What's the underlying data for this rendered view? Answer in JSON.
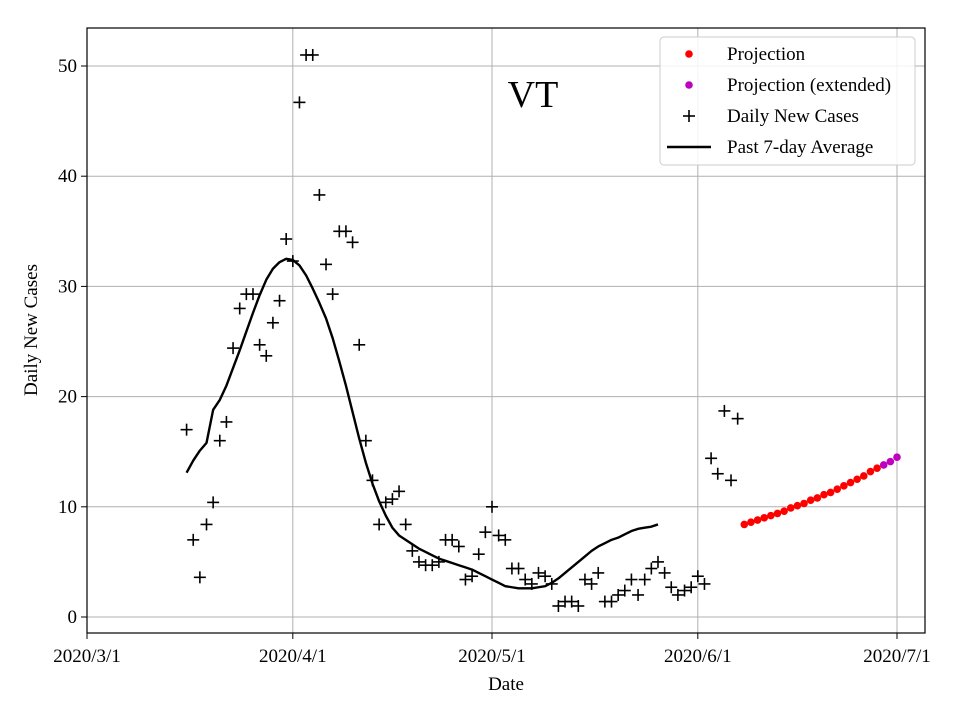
{
  "chart_data": {
    "type": "scatter",
    "title": "VT",
    "xlabel": "Date",
    "ylabel": "Daily New Cases",
    "x_range_days": [
      0,
      122
    ],
    "ylim": [
      -1.5,
      53.5
    ],
    "grid": true,
    "legend_location": "top-right",
    "x_ticks": [
      {
        "day": 0,
        "label": "2020/3/1"
      },
      {
        "day": 31,
        "label": "2020/4/1"
      },
      {
        "day": 61,
        "label": "2020/5/1"
      },
      {
        "day": 92,
        "label": "2020/6/1"
      },
      {
        "day": 122,
        "label": "2020/7/1"
      }
    ],
    "y_ticks": [
      0,
      10,
      20,
      30,
      40,
      50
    ],
    "series": [
      {
        "name": "Daily New Cases",
        "kind": "marker-plus",
        "color": "#000000",
        "points": [
          [
            15,
            17.0
          ],
          [
            16,
            7.0
          ],
          [
            17,
            3.6
          ],
          [
            18,
            8.4
          ],
          [
            19,
            10.4
          ],
          [
            20,
            16.0
          ],
          [
            21,
            17.7
          ],
          [
            22,
            24.4
          ],
          [
            23,
            28.0
          ],
          [
            24,
            29.3
          ],
          [
            25,
            29.3
          ],
          [
            26,
            24.7
          ],
          [
            27,
            23.7
          ],
          [
            28,
            26.7
          ],
          [
            29,
            28.7
          ],
          [
            30,
            34.3
          ],
          [
            31,
            32.3
          ],
          [
            32,
            46.7
          ],
          [
            33,
            51.0
          ],
          [
            34,
            51.0
          ],
          [
            35,
            38.3
          ],
          [
            36,
            32.0
          ],
          [
            37,
            29.3
          ],
          [
            38,
            35.0
          ],
          [
            39,
            35.0
          ],
          [
            40,
            34.0
          ],
          [
            41,
            24.7
          ],
          [
            42,
            16.0
          ],
          [
            43,
            12.4
          ],
          [
            44,
            8.4
          ],
          [
            45,
            10.4
          ],
          [
            46,
            10.7
          ],
          [
            47,
            11.4
          ],
          [
            48,
            8.4
          ],
          [
            49,
            6.0
          ],
          [
            50,
            5.0
          ],
          [
            51,
            4.7
          ],
          [
            52,
            4.7
          ],
          [
            53,
            5.0
          ],
          [
            54,
            7.0
          ],
          [
            55,
            7.0
          ],
          [
            56,
            6.4
          ],
          [
            57,
            3.4
          ],
          [
            58,
            3.7
          ],
          [
            59,
            5.7
          ],
          [
            60,
            7.7
          ],
          [
            61,
            10.0
          ],
          [
            62,
            7.4
          ],
          [
            63,
            7.0
          ],
          [
            64,
            4.4
          ],
          [
            65,
            4.4
          ],
          [
            66,
            3.4
          ],
          [
            67,
            3.0
          ],
          [
            68,
            4.0
          ],
          [
            69,
            3.7
          ],
          [
            70,
            3.0
          ],
          [
            71,
            1.0
          ],
          [
            72,
            1.4
          ],
          [
            73,
            1.4
          ],
          [
            74,
            1.0
          ],
          [
            75,
            3.4
          ],
          [
            76,
            3.0
          ],
          [
            77,
            4.0
          ],
          [
            78,
            1.4
          ],
          [
            79,
            1.4
          ],
          [
            80,
            2.0
          ],
          [
            81,
            2.4
          ],
          [
            82,
            3.4
          ],
          [
            83,
            2.0
          ],
          [
            84,
            3.4
          ],
          [
            85,
            4.4
          ],
          [
            86,
            5.0
          ],
          [
            87,
            4.0
          ],
          [
            88,
            2.7
          ],
          [
            89,
            2.0
          ],
          [
            90,
            2.4
          ],
          [
            91,
            2.7
          ],
          [
            92,
            3.7
          ],
          [
            93,
            3.0
          ],
          [
            94,
            14.4
          ],
          [
            95,
            13.0
          ],
          [
            96,
            18.7
          ],
          [
            97,
            12.4
          ],
          [
            98,
            18.0
          ]
        ]
      },
      {
        "name": "Past 7-day Average",
        "kind": "line",
        "color": "#000000",
        "points": [
          [
            15,
            13.1
          ],
          [
            16,
            14.2
          ],
          [
            17,
            15.1
          ],
          [
            18,
            15.8
          ],
          [
            19,
            18.8
          ],
          [
            20,
            19.7
          ],
          [
            21,
            21.0
          ],
          [
            22,
            22.6
          ],
          [
            23,
            24.2
          ],
          [
            24,
            25.9
          ],
          [
            25,
            27.6
          ],
          [
            26,
            29.2
          ],
          [
            27,
            30.6
          ],
          [
            28,
            31.6
          ],
          [
            29,
            32.2
          ],
          [
            30,
            32.5
          ],
          [
            31,
            32.4
          ],
          [
            32,
            31.9
          ],
          [
            33,
            31.0
          ],
          [
            34,
            29.8
          ],
          [
            35,
            28.5
          ],
          [
            36,
            27.1
          ],
          [
            37,
            25.3
          ],
          [
            38,
            23.2
          ],
          [
            39,
            21.0
          ],
          [
            40,
            18.6
          ],
          [
            41,
            16.2
          ],
          [
            42,
            14.0
          ],
          [
            43,
            12.1
          ],
          [
            44,
            10.5
          ],
          [
            45,
            9.2
          ],
          [
            46,
            8.1
          ],
          [
            47,
            7.4
          ],
          [
            48,
            7.0
          ],
          [
            49,
            6.6
          ],
          [
            50,
            6.2
          ],
          [
            51,
            5.9
          ],
          [
            52,
            5.6
          ],
          [
            53,
            5.3
          ],
          [
            54,
            5.1
          ],
          [
            55,
            4.9
          ],
          [
            56,
            4.7
          ],
          [
            57,
            4.5
          ],
          [
            58,
            4.3
          ],
          [
            59,
            4.0
          ],
          [
            60,
            3.7
          ],
          [
            61,
            3.4
          ],
          [
            62,
            3.1
          ],
          [
            63,
            2.8
          ],
          [
            64,
            2.7
          ],
          [
            65,
            2.6
          ],
          [
            66,
            2.6
          ],
          [
            67,
            2.6
          ],
          [
            68,
            2.7
          ],
          [
            69,
            2.8
          ],
          [
            70,
            3.1
          ],
          [
            71,
            3.5
          ],
          [
            72,
            4.0
          ],
          [
            73,
            4.5
          ],
          [
            74,
            5.0
          ],
          [
            75,
            5.5
          ],
          [
            76,
            6.0
          ],
          [
            77,
            6.4
          ],
          [
            78,
            6.7
          ],
          [
            79,
            7.0
          ],
          [
            80,
            7.2
          ],
          [
            81,
            7.5
          ],
          [
            82,
            7.8
          ],
          [
            83,
            8.0
          ],
          [
            84,
            8.1
          ],
          [
            85,
            8.2
          ],
          [
            86,
            8.4
          ]
        ]
      },
      {
        "name": "Projection",
        "kind": "marker-dot",
        "color": "#ff0000",
        "points": [
          [
            99,
            8.4
          ],
          [
            100,
            8.6
          ],
          [
            101,
            8.8
          ],
          [
            102,
            9.0
          ],
          [
            103,
            9.2
          ],
          [
            104,
            9.4
          ],
          [
            105,
            9.6
          ],
          [
            106,
            9.9
          ],
          [
            107,
            10.1
          ],
          [
            108,
            10.3
          ],
          [
            109,
            10.6
          ],
          [
            110,
            10.8
          ],
          [
            111,
            11.1
          ],
          [
            112,
            11.3
          ],
          [
            113,
            11.6
          ],
          [
            114,
            11.9
          ],
          [
            115,
            12.2
          ],
          [
            116,
            12.5
          ],
          [
            117,
            12.8
          ],
          [
            118,
            13.2
          ],
          [
            119,
            13.5
          ]
        ]
      },
      {
        "name": "Projection (extended)",
        "kind": "marker-dot",
        "color": "#bf00bf",
        "points": [
          [
            120,
            13.8
          ],
          [
            121,
            14.1
          ],
          [
            122,
            14.5
          ]
        ]
      }
    ],
    "legend": [
      {
        "label": "Projection",
        "kind": "marker-dot",
        "color": "#ff0000"
      },
      {
        "label": "Projection (extended)",
        "kind": "marker-dot",
        "color": "#bf00bf"
      },
      {
        "label": "Daily New Cases",
        "kind": "marker-plus",
        "color": "#000000"
      },
      {
        "label": "Past 7-day Average",
        "kind": "line",
        "color": "#000000"
      }
    ]
  }
}
